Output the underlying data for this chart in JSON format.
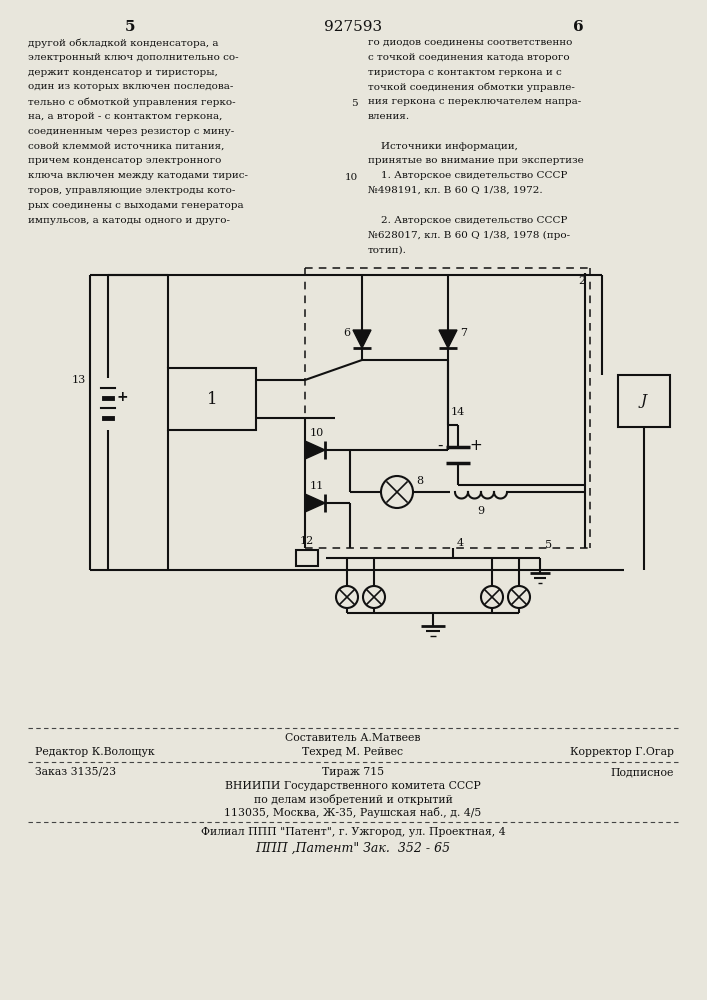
{
  "bg_color": "#e8e6dc",
  "page_color": "#e8e6dc",
  "text_color": "#111111",
  "patent_number": "927593",
  "page_left": "5",
  "page_right": "6",
  "col_left_lines": [
    "другой обкладкой конденсатора, а",
    "электронный ключ дополнительно со-",
    "держит конденсатор и тиристоры,",
    "один из которых включен последова-",
    "тельно с обмоткой управления герко-",
    "на, а второй - с контактом геркона,",
    "соединенным через резистор с мину-",
    "совой клеммой источника питания,",
    "причем конденсатор электронного",
    "ключа включен между катодами тирис-",
    "торов, управляющие электроды кото-",
    "рых соединены с выходами генератора",
    "импульсов, а катоды одного и друго-"
  ],
  "col_right_lines": [
    "го диодов соединены соответственно",
    "с точкой соединения катода второго",
    "тиристора с контактом геркона и с",
    "точкой соединения обмотки управле-",
    "ния геркона с переключателем напра-",
    "вления.",
    "",
    "    Источники информации,",
    "принятые во внимание при экспертизе",
    "    1. Авторское свидетельство СССР",
    "№498191, кл. В 60 Q 1/38, 1972.",
    "",
    "    2. Авторское свидетельство СССР",
    "№628017, кл. В 60 Q 1/38, 1978 (про-",
    "тотип)."
  ],
  "footer_sestavitel": "Составитель А.Матвеев",
  "footer_redaktor": "Редактор К.Волощук",
  "footer_tekhred": "Техред М. Рейвес",
  "footer_korrektor": "Корректор Г.Огар",
  "footer_zakaz": "Заказ 3135/23",
  "footer_tirazh": "Тираж 715",
  "footer_podpisnoe": "Подписное",
  "footer_vniip1": "ВНИИПИ Государственного комитета СССР",
  "footer_vniip2": "по делам изобретений и открытий",
  "footer_vniip3": "113035, Москва, Ж-35, Раушская наб., д. 4/5",
  "footer_filial": "Филиал ППП \"Патент\", г. Ужгород, ул. Проектная, 4",
  "footer_ppp": "ППП ,Патент\" Зак.  352 - 65",
  "line_number_5": "5",
  "line_number_10": "10"
}
